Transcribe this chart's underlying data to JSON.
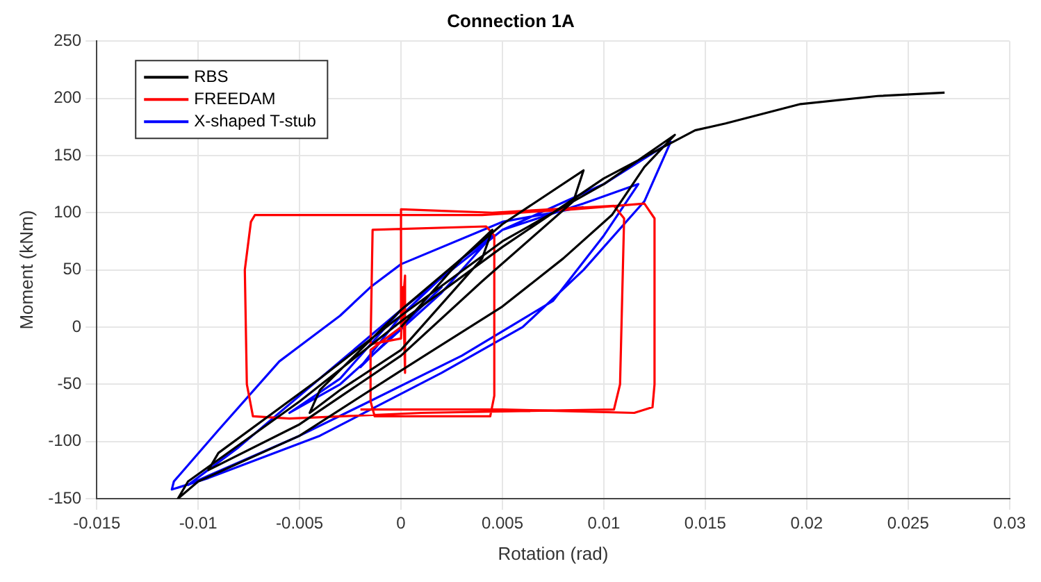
{
  "chart_data": {
    "type": "line",
    "title": "Connection 1A",
    "xlabel": "Rotation (rad)",
    "ylabel": "Moment (kNm)",
    "xlim": [
      -0.015,
      0.03
    ],
    "xticks": [
      -0.015,
      -0.01,
      -0.005,
      0,
      0.005,
      0.01,
      0.015,
      0.02,
      0.025,
      0.03
    ],
    "ylim": [
      -150,
      250
    ],
    "yticks": [
      -150,
      -100,
      -50,
      0,
      50,
      100,
      150,
      200,
      250
    ],
    "grid": true,
    "legend": "top left",
    "marker": "none",
    "line_style": "solid",
    "series": [
      {
        "name": "RBS",
        "color": "#000000",
        "x": [
          0,
          0.003,
          0.0045,
          0.004,
          0,
          -0.003,
          -0.0045,
          -0.004,
          0,
          0.005,
          0.009,
          0.0085,
          0.004,
          0,
          -0.005,
          -0.0095,
          -0.009,
          -0.004,
          0,
          0.005,
          0.01,
          0.0135,
          0.012,
          0.0104,
          0.008,
          0.005,
          0,
          -0.005,
          -0.01,
          -0.011,
          -0.0105,
          -0.005,
          0,
          0.005,
          0.01,
          0.0145,
          0.016,
          0.0197,
          0.0235,
          0.0268
        ],
        "values": [
          0,
          60,
          85,
          60,
          -20,
          -55,
          -75,
          -55,
          15,
          90,
          137,
          110,
          40,
          -25,
          -85,
          -125,
          -110,
          -45,
          10,
          75,
          125,
          168,
          140,
          98,
          60,
          18,
          -38,
          -95,
          -135,
          -150,
          -135,
          -65,
          5,
          70,
          130,
          172,
          178,
          195,
          202,
          205
        ]
      },
      {
        "name": "FREEDAM",
        "color": "#ff0000",
        "x": [
          0,
          0.0002,
          0.0002,
          0.0001,
          0,
          -0.0015,
          -0.0014,
          0.0042,
          0.0046,
          0.0046,
          0.0044,
          -0.0013,
          -0.0015,
          -0.0015,
          0,
          0,
          0.0045,
          0.0105,
          0.011,
          0.0108,
          0.0105,
          0.001,
          -0.0055,
          -0.0073,
          -0.0076,
          -0.0077,
          -0.0074,
          -0.0072,
          0.004,
          0.0085,
          0.012,
          0.0125,
          0.0125,
          0.0124,
          0.0115,
          0.005,
          -0.002
        ],
        "values": [
          0,
          45,
          -40,
          35,
          -10,
          -15,
          85,
          88,
          80,
          -60,
          -78,
          -78,
          -65,
          -20,
          0,
          103,
          100,
          106,
          95,
          -50,
          -72,
          -75,
          -80,
          -78,
          -50,
          50,
          92,
          98,
          98,
          103,
          108,
          95,
          -50,
          -70,
          -75,
          -72,
          -72
        ]
      },
      {
        "name": "X-shaped T-stub",
        "color": "#0000ff",
        "x": [
          0,
          0.002,
          -0.002,
          0,
          0.003,
          0.0045,
          0.002,
          -0.003,
          -0.0055,
          -0.003,
          0,
          0.005,
          0.009,
          0.0117,
          0.01,
          0.0075,
          0.003,
          -0.0019,
          -0.005,
          -0.0095,
          -0.0105,
          -0.008,
          -0.004,
          0,
          0.005,
          0.01,
          0.0133,
          0.012,
          0.009,
          0.006,
          0.002,
          -0.004,
          -0.0095,
          -0.0113,
          -0.0112,
          -0.009,
          -0.006,
          -0.003,
          -0.0015,
          0,
          0.005,
          0.009
        ],
        "values": [
          0,
          35,
          -35,
          10,
          60,
          80,
          30,
          -50,
          -75,
          -45,
          15,
          85,
          108,
          125,
          80,
          23,
          -25,
          -68,
          -95,
          -130,
          -138,
          -105,
          -45,
          15,
          85,
          125,
          162,
          110,
          50,
          0,
          -40,
          -95,
          -132,
          -142,
          -135,
          -90,
          -30,
          10,
          35,
          55,
          92,
          105
        ]
      }
    ]
  }
}
